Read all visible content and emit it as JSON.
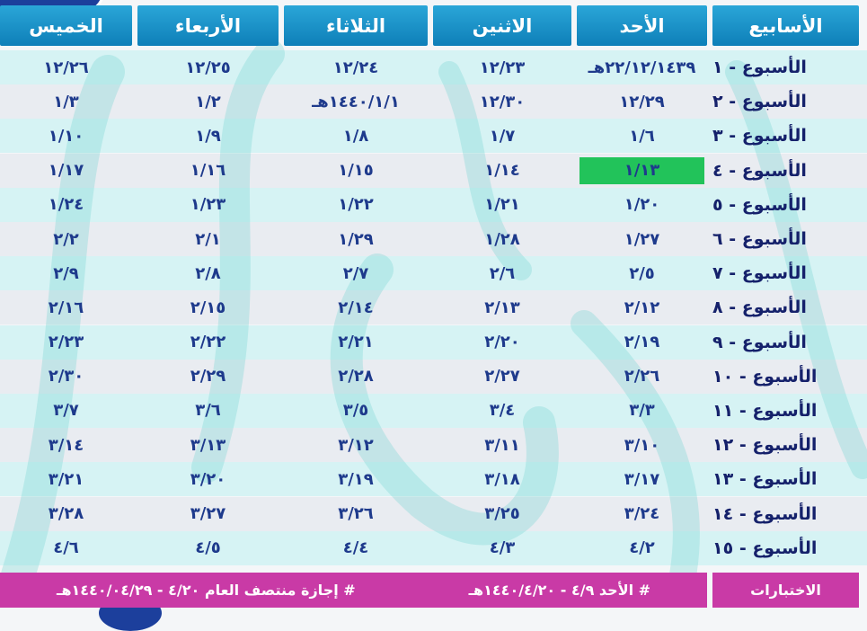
{
  "headers": [
    "الخميس",
    "الأربعاء",
    "الثلاثاء",
    "الاثنين",
    "الأحد",
    "الأسابيع"
  ],
  "rows": [
    {
      "week": "الأسبوع - ١",
      "thu": "١٢/٢٦",
      "wed": "١٢/٢٥",
      "tue": "١٢/٢٤",
      "mon": "١٢/٢٣",
      "sun": "٢٢/١٢/١٤٣٩هـ"
    },
    {
      "week": "الأسبوع - ٢",
      "thu": "١/٣",
      "wed": "١/٢",
      "tue": "١٤٤٠/١/١هـ",
      "mon": "١٢/٣٠",
      "sun": "١٢/٢٩"
    },
    {
      "week": "الأسبوع - ٣",
      "thu": "١/١٠",
      "wed": "١/٩",
      "tue": "١/٨",
      "mon": "١/٧",
      "sun": "١/٦"
    },
    {
      "week": "الأسبوع - ٤",
      "thu": "١/١٧",
      "wed": "١/١٦",
      "tue": "١/١٥",
      "mon": "١/١٤",
      "sun": "١/١٣"
    },
    {
      "week": "الأسبوع - ٥",
      "thu": "١/٢٤",
      "wed": "١/٢٣",
      "tue": "١/٢٢",
      "mon": "١/٢١",
      "sun": "١/٢٠"
    },
    {
      "week": "الأسبوع - ٦",
      "thu": "٢/٢",
      "wed": "٢/١",
      "tue": "١/٢٩",
      "mon": "١/٢٨",
      "sun": "١/٢٧"
    },
    {
      "week": "الأسبوع - ٧",
      "thu": "٢/٩",
      "wed": "٢/٨",
      "tue": "٢/٧",
      "mon": "٢/٦",
      "sun": "٢/٥"
    },
    {
      "week": "الأسبوع - ٨",
      "thu": "٢/١٦",
      "wed": "٢/١٥",
      "tue": "٢/١٤",
      "mon": "٢/١٣",
      "sun": "٢/١٢"
    },
    {
      "week": "الأسبوع - ٩",
      "thu": "٢/٢٣",
      "wed": "٢/٢٢",
      "tue": "٢/٢١",
      "mon": "٢/٢٠",
      "sun": "٢/١٩"
    },
    {
      "week": "الأسبوع - ١٠",
      "thu": "٢/٣٠",
      "wed": "٢/٢٩",
      "tue": "٢/٢٨",
      "mon": "٢/٢٧",
      "sun": "٢/٢٦"
    },
    {
      "week": "الأسبوع - ١١",
      "thu": "٣/٧",
      "wed": "٣/٦",
      "tue": "٣/٥",
      "mon": "٣/٤",
      "sun": "٣/٣"
    },
    {
      "week": "الأسبوع - ١٢",
      "thu": "٣/١٤",
      "wed": "٣/١٣",
      "tue": "٣/١٢",
      "mon": "٣/١١",
      "sun": "٣/١٠"
    },
    {
      "week": "الأسبوع - ١٣",
      "thu": "٣/٢١",
      "wed": "٣/٢٠",
      "tue": "٣/١٩",
      "mon": "٣/١٨",
      "sun": "٣/١٧"
    },
    {
      "week": "الأسبوع - ١٤",
      "thu": "٣/٢٨",
      "wed": "٣/٢٧",
      "tue": "٣/٢٦",
      "mon": "٣/٢٥",
      "sun": "٣/٢٤"
    },
    {
      "week": "الأسبوع - ١٥",
      "thu": "٤/٦",
      "wed": "٤/٥",
      "tue": "٤/٤",
      "mon": "٤/٣",
      "sun": "٤/٢"
    }
  ],
  "highlight": {
    "row": 3,
    "column": "sun",
    "color": "#22c35a"
  },
  "footer": {
    "label": "الاختبارات",
    "exam_note": "# الأحد ٤/٩ - ١٤٤٠/٤/٢٠هـ",
    "holiday_note": "# إجازة منتصف العام ٤/٢٠ - ١٤٤٠/٠٤/٢٩هـ"
  },
  "colors": {
    "header": "#1a93cc",
    "row_light": "#d6f3f4",
    "row_dark": "#e9ecf1",
    "text": "#1e3a8c",
    "footer": "#c93aa6"
  }
}
